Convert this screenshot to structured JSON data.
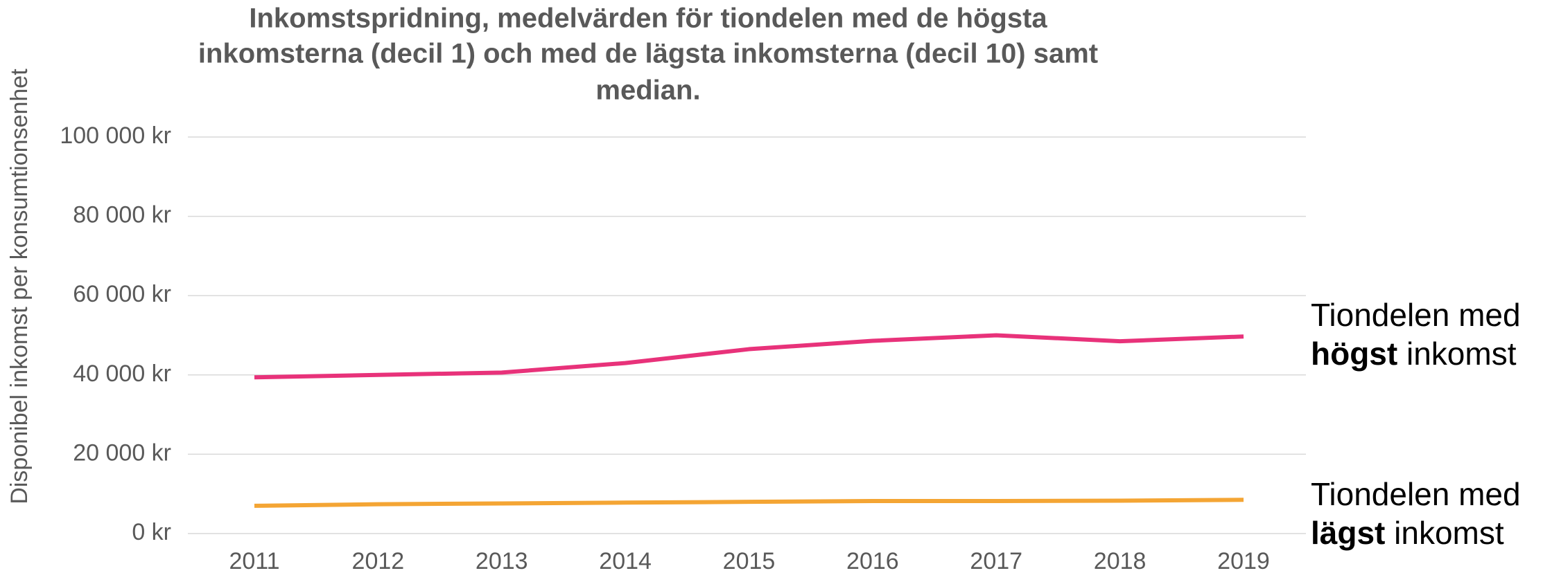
{
  "chart_data": {
    "type": "line",
    "title": [
      "Inkomstspridning, medelvärden för tiondelen med de högsta",
      "inkomsterna (decil 1) och med de lägsta inkomsterna (decil 10) samt",
      "median."
    ],
    "y_label": "Disponibel inkomst per konsumtionsenhet",
    "categories": [
      "2011",
      "2012",
      "2013",
      "2014",
      "2015",
      "2016",
      "2017",
      "2018",
      "2019"
    ],
    "series": [
      {
        "label": [
          "Tiondelen med",
          "högst",
          "inkomst"
        ],
        "color": "#e8327a",
        "values": [
          39400,
          40000,
          40600,
          43000,
          46500,
          48600,
          50000,
          48500,
          49700
        ]
      },
      {
        "label": [
          "Tiondelen med",
          "lägst",
          "inkomst"
        ],
        "color": "#f4a534",
        "values": [
          7000,
          7400,
          7600,
          7800,
          8000,
          8200,
          8200,
          8300,
          8500
        ]
      }
    ],
    "ylim": [
      0,
      100000
    ],
    "yticks": [
      {
        "value": 0,
        "label": "0 kr"
      },
      {
        "value": 20000,
        "label": "20 000 kr"
      },
      {
        "value": 40000,
        "label": "40 000 kr"
      },
      {
        "value": 60000,
        "label": "60 000 kr"
      },
      {
        "value": 80000,
        "label": "80 000 kr"
      },
      {
        "value": 100000,
        "label": "100 000 kr"
      }
    ],
    "grid": true
  }
}
